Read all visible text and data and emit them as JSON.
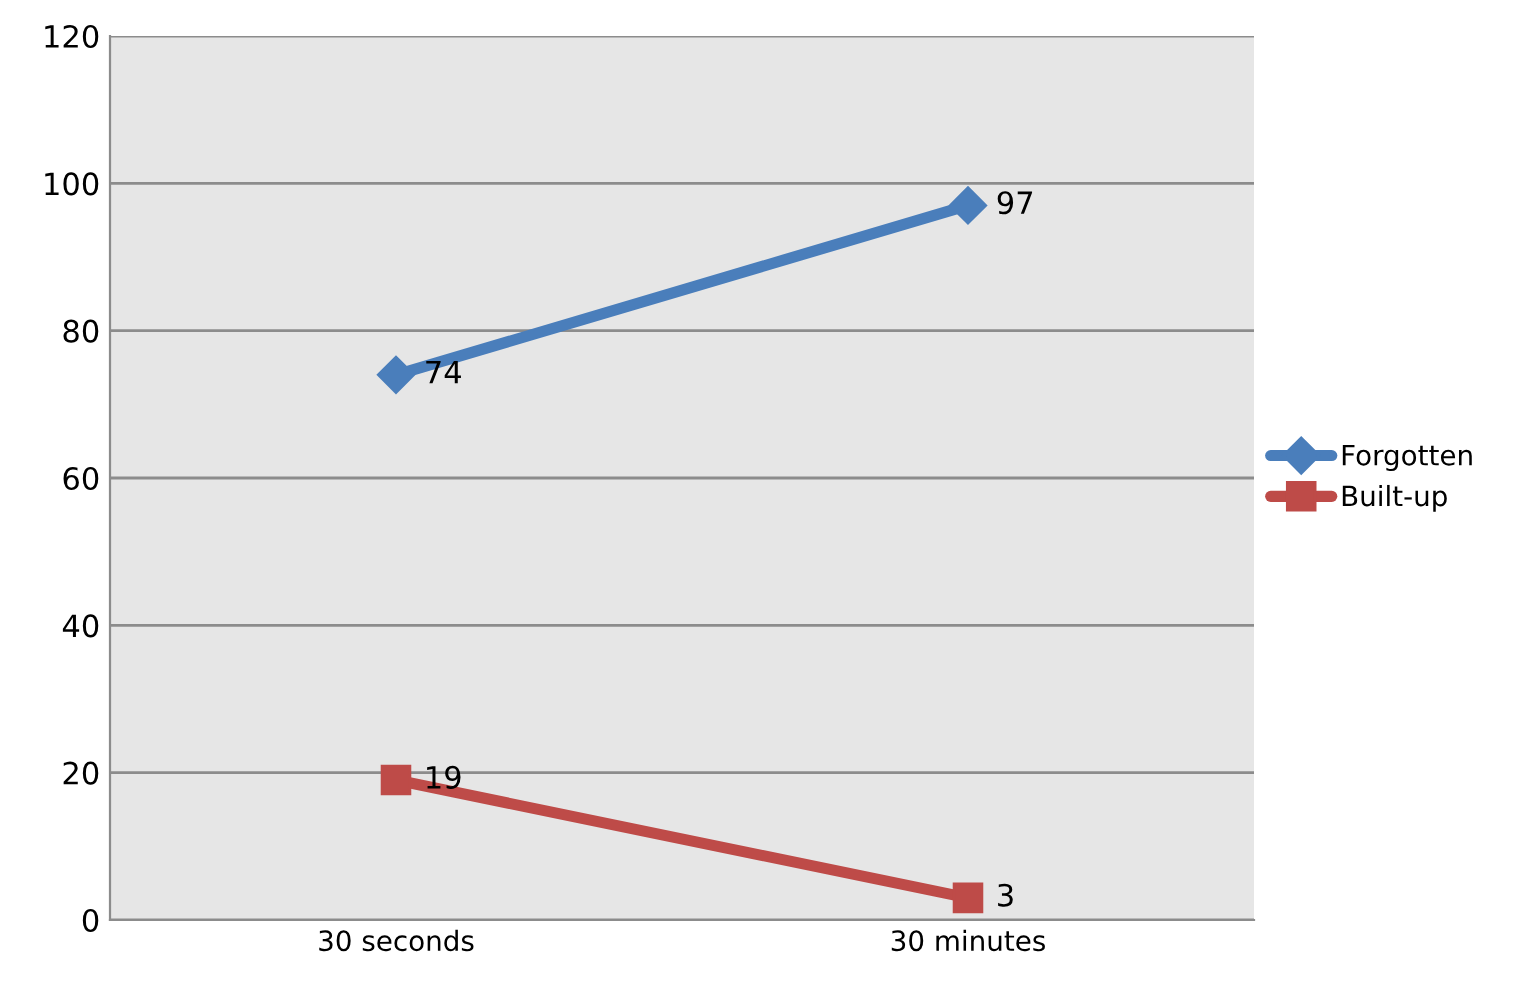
{
  "chart_data": {
    "type": "line",
    "categories": [
      "30 seconds",
      "30 minutes"
    ],
    "series": [
      {
        "name": "Forgotten",
        "color": "#4a7ebb",
        "values": [
          74,
          97
        ],
        "marker": "diamond"
      },
      {
        "name": "Built-up",
        "color": "#be4b48",
        "values": [
          19,
          3
        ],
        "marker": "square"
      }
    ],
    "ylim": [
      0,
      120
    ],
    "yticks": [
      0,
      20,
      40,
      60,
      80,
      100,
      120
    ],
    "grid": "y",
    "legend": "right",
    "data_labels": true,
    "line_style": "solid"
  }
}
